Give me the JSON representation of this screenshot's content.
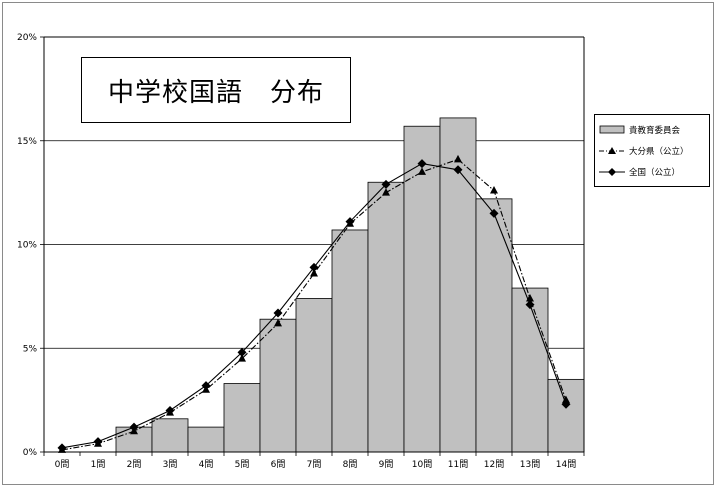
{
  "chart_data": {
    "type": "bar",
    "title": "中学校国語　分布",
    "categories": [
      "0問",
      "1問",
      "2問",
      "3問",
      "4問",
      "5問",
      "6問",
      "7問",
      "8問",
      "9問",
      "10問",
      "11問",
      "12問",
      "13問",
      "14問"
    ],
    "y_ticks": [
      "0%",
      "5%",
      "10%",
      "15%",
      "20%"
    ],
    "ylim": [
      0,
      20
    ],
    "grid": true,
    "legend_position": "right",
    "series": [
      {
        "name": "貴教育委員会",
        "kind": "bar",
        "color": "#c0c0c0",
        "values": [
          0.0,
          0.0,
          1.2,
          1.6,
          1.2,
          3.3,
          6.4,
          7.4,
          10.7,
          13.0,
          15.7,
          16.1,
          12.2,
          7.9,
          3.5
        ]
      },
      {
        "name": "大分県（公立）",
        "kind": "line",
        "style": "dash-dot",
        "marker": "triangle",
        "color": "#000000",
        "values": [
          0.1,
          0.4,
          1.0,
          1.9,
          3.0,
          4.5,
          6.2,
          8.6,
          11.0,
          12.5,
          13.5,
          14.1,
          12.6,
          7.4,
          2.5
        ]
      },
      {
        "name": "全国（公立）",
        "kind": "line",
        "style": "solid",
        "marker": "diamond",
        "color": "#000000",
        "values": [
          0.2,
          0.5,
          1.2,
          2.0,
          3.2,
          4.8,
          6.7,
          8.9,
          11.1,
          12.9,
          13.9,
          13.6,
          11.5,
          7.1,
          2.3
        ]
      }
    ]
  }
}
